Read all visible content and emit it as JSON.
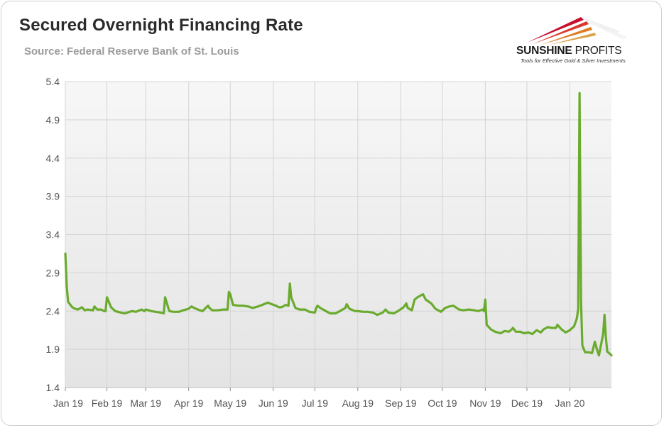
{
  "header": {
    "title": "Secured Overnight Financing Rate",
    "subtitle": "Source: Federal Reserve Bank of St. Louis"
  },
  "logo": {
    "name_bold": "SUNSHINE",
    "name_light": "PROFITS",
    "tagline": "Tools for Effective Gold & Silver Investments"
  },
  "colors": {
    "series": "#6aab2e",
    "plot_background_top": "#f7f7f7",
    "plot_background_bottom": "#e4e4e4",
    "grid": "#d4d4d4"
  },
  "chart_data": {
    "type": "line",
    "title": "Secured Overnight Financing Rate",
    "xlabel": "",
    "ylabel": "",
    "ylim": [
      1.4,
      5.4
    ],
    "yticks": [
      1.4,
      1.9,
      2.4,
      2.9,
      3.4,
      3.9,
      4.4,
      4.9,
      5.4
    ],
    "ytick_labels": [
      "1.4",
      "1.9",
      "2.4",
      "2.9",
      "3.4",
      "3.9",
      "4.4",
      "4.9",
      "5.4"
    ],
    "xlim": [
      "2019-01-02",
      "2020-01-31"
    ],
    "xticks": [
      {
        "date": "2019-01-01",
        "label": "Jan 19"
      },
      {
        "date": "2019-02-01",
        "label": "Feb 19"
      },
      {
        "date": "2019-03-01",
        "label": "Mar 19"
      },
      {
        "date": "2019-04-01",
        "label": "Apr 19"
      },
      {
        "date": "2019-05-01",
        "label": "May 19"
      },
      {
        "date": "2019-06-01",
        "label": "Jun 19"
      },
      {
        "date": "2019-07-01",
        "label": "Jul 19"
      },
      {
        "date": "2019-08-01",
        "label": "Aug 19"
      },
      {
        "date": "2019-09-01",
        "label": "Sep 19"
      },
      {
        "date": "2019-10-01",
        "label": "Oct 19"
      },
      {
        "date": "2019-11-01",
        "label": "Nov 19"
      },
      {
        "date": "2019-12-01",
        "label": "Dec 19"
      },
      {
        "date": "2020-01-01",
        "label": "Jan 20"
      }
    ],
    "grid": true,
    "legend": "none",
    "series": [
      {
        "points": [
          [
            "2019-01-02",
            3.15
          ],
          [
            "2019-01-03",
            2.72
          ],
          [
            "2019-01-04",
            2.52
          ],
          [
            "2019-01-07",
            2.45
          ],
          [
            "2019-01-09",
            2.43
          ],
          [
            "2019-01-11",
            2.42
          ],
          [
            "2019-01-14",
            2.45
          ],
          [
            "2019-01-16",
            2.41
          ],
          [
            "2019-01-18",
            2.42
          ],
          [
            "2019-01-22",
            2.41
          ],
          [
            "2019-01-23",
            2.46
          ],
          [
            "2019-01-25",
            2.42
          ],
          [
            "2019-01-28",
            2.42
          ],
          [
            "2019-01-30",
            2.4
          ],
          [
            "2019-01-31",
            2.4
          ],
          [
            "2019-02-01",
            2.58
          ],
          [
            "2019-02-04",
            2.45
          ],
          [
            "2019-02-07",
            2.4
          ],
          [
            "2019-02-11",
            2.38
          ],
          [
            "2019-02-14",
            2.37
          ],
          [
            "2019-02-19",
            2.4
          ],
          [
            "2019-02-22",
            2.39
          ],
          [
            "2019-02-26",
            2.42
          ],
          [
            "2019-02-28",
            2.4
          ],
          [
            "2019-03-01",
            2.42
          ],
          [
            "2019-03-05",
            2.4
          ],
          [
            "2019-03-08",
            2.39
          ],
          [
            "2019-03-12",
            2.38
          ],
          [
            "2019-03-14",
            2.37
          ],
          [
            "2019-03-15",
            2.58
          ],
          [
            "2019-03-18",
            2.4
          ],
          [
            "2019-03-21",
            2.39
          ],
          [
            "2019-03-25",
            2.39
          ],
          [
            "2019-03-28",
            2.41
          ],
          [
            "2019-04-01",
            2.43
          ],
          [
            "2019-04-03",
            2.46
          ],
          [
            "2019-04-05",
            2.44
          ],
          [
            "2019-04-09",
            2.41
          ],
          [
            "2019-04-11",
            2.4
          ],
          [
            "2019-04-15",
            2.47
          ],
          [
            "2019-04-16",
            2.44
          ],
          [
            "2019-04-18",
            2.41
          ],
          [
            "2019-04-22",
            2.41
          ],
          [
            "2019-04-26",
            2.42
          ],
          [
            "2019-04-29",
            2.42
          ],
          [
            "2019-04-30",
            2.65
          ],
          [
            "2019-05-01",
            2.62
          ],
          [
            "2019-05-02",
            2.55
          ],
          [
            "2019-05-03",
            2.48
          ],
          [
            "2019-05-07",
            2.47
          ],
          [
            "2019-05-10",
            2.47
          ],
          [
            "2019-05-14",
            2.46
          ],
          [
            "2019-05-17",
            2.44
          ],
          [
            "2019-05-21",
            2.46
          ],
          [
            "2019-05-24",
            2.48
          ],
          [
            "2019-05-28",
            2.51
          ],
          [
            "2019-05-31",
            2.49
          ],
          [
            "2019-06-03",
            2.47
          ],
          [
            "2019-06-05",
            2.45
          ],
          [
            "2019-06-07",
            2.45
          ],
          [
            "2019-06-10",
            2.48
          ],
          [
            "2019-06-12",
            2.47
          ],
          [
            "2019-06-13",
            2.76
          ],
          [
            "2019-06-14",
            2.58
          ],
          [
            "2019-06-17",
            2.44
          ],
          [
            "2019-06-20",
            2.42
          ],
          [
            "2019-06-24",
            2.42
          ],
          [
            "2019-06-27",
            2.39
          ],
          [
            "2019-07-01",
            2.38
          ],
          [
            "2019-07-02",
            2.44
          ],
          [
            "2019-07-03",
            2.47
          ],
          [
            "2019-07-05",
            2.44
          ],
          [
            "2019-07-09",
            2.4
          ],
          [
            "2019-07-12",
            2.37
          ],
          [
            "2019-07-16",
            2.37
          ],
          [
            "2019-07-19",
            2.4
          ],
          [
            "2019-07-23",
            2.44
          ],
          [
            "2019-07-24",
            2.49
          ],
          [
            "2019-07-26",
            2.43
          ],
          [
            "2019-07-30",
            2.4
          ],
          [
            "2019-08-01",
            2.4
          ],
          [
            "2019-08-05",
            2.39
          ],
          [
            "2019-08-08",
            2.39
          ],
          [
            "2019-08-12",
            2.38
          ],
          [
            "2019-08-15",
            2.35
          ],
          [
            "2019-08-19",
            2.38
          ],
          [
            "2019-08-21",
            2.42
          ],
          [
            "2019-08-23",
            2.38
          ],
          [
            "2019-08-27",
            2.37
          ],
          [
            "2019-08-30",
            2.4
          ],
          [
            "2019-09-03",
            2.45
          ],
          [
            "2019-09-05",
            2.5
          ],
          [
            "2019-09-06",
            2.44
          ],
          [
            "2019-09-09",
            2.41
          ],
          [
            "2019-09-11",
            2.55
          ],
          [
            "2019-09-13",
            2.58
          ],
          [
            "2019-09-17",
            2.62
          ],
          [
            "2019-09-19",
            2.55
          ],
          [
            "2019-09-23",
            2.5
          ],
          [
            "2019-09-26",
            2.43
          ],
          [
            "2019-09-30",
            2.39
          ],
          [
            "2019-10-03",
            2.44
          ],
          [
            "2019-10-06",
            2.46
          ],
          [
            "2019-10-09",
            2.47
          ],
          [
            "2019-10-13",
            2.42
          ],
          [
            "2019-10-16",
            2.41
          ],
          [
            "2019-10-20",
            2.42
          ],
          [
            "2019-10-24",
            2.41
          ],
          [
            "2019-10-27",
            2.4
          ],
          [
            "2019-10-30",
            2.42
          ],
          [
            "2019-10-31",
            2.4
          ],
          [
            "2019-11-01",
            2.55
          ],
          [
            "2019-11-02",
            2.22
          ],
          [
            "2019-11-05",
            2.16
          ],
          [
            "2019-11-08",
            2.13
          ],
          [
            "2019-11-12",
            2.11
          ],
          [
            "2019-11-15",
            2.14
          ],
          [
            "2019-11-18",
            2.13
          ],
          [
            "2019-11-20",
            2.16
          ],
          [
            "2019-11-21",
            2.18
          ],
          [
            "2019-11-23",
            2.13
          ],
          [
            "2019-11-26",
            2.13
          ],
          [
            "2019-11-29",
            2.11
          ],
          [
            "2019-12-02",
            2.12
          ],
          [
            "2019-12-05",
            2.1
          ],
          [
            "2019-12-08",
            2.15
          ],
          [
            "2019-12-11",
            2.12
          ],
          [
            "2019-12-13",
            2.16
          ],
          [
            "2019-12-16",
            2.19
          ],
          [
            "2019-12-19",
            2.18
          ],
          [
            "2019-12-22",
            2.18
          ],
          [
            "2019-12-23",
            2.22
          ],
          [
            "2019-12-26",
            2.16
          ],
          [
            "2019-12-29",
            2.12
          ],
          [
            "2020-01-01",
            2.15
          ],
          [
            "2020-01-04",
            2.2
          ],
          [
            "2020-01-06",
            2.3
          ],
          [
            "2020-01-07",
            2.43
          ],
          [
            "2020-01-08",
            5.25
          ],
          [
            "2020-01-09",
            2.55
          ],
          [
            "2020-01-10",
            1.95
          ],
          [
            "2020-01-12",
            1.86
          ],
          [
            "2020-01-15",
            1.86
          ],
          [
            "2020-01-17",
            1.85
          ],
          [
            "2020-01-19",
            2.0
          ],
          [
            "2020-01-21",
            1.87
          ],
          [
            "2020-01-22",
            1.82
          ],
          [
            "2020-01-25",
            2.1
          ],
          [
            "2020-01-26",
            2.35
          ],
          [
            "2020-01-27",
            2.05
          ],
          [
            "2020-01-28",
            1.87
          ],
          [
            "2020-01-30",
            1.84
          ],
          [
            "2020-01-31",
            1.82
          ]
        ]
      }
    ]
  }
}
